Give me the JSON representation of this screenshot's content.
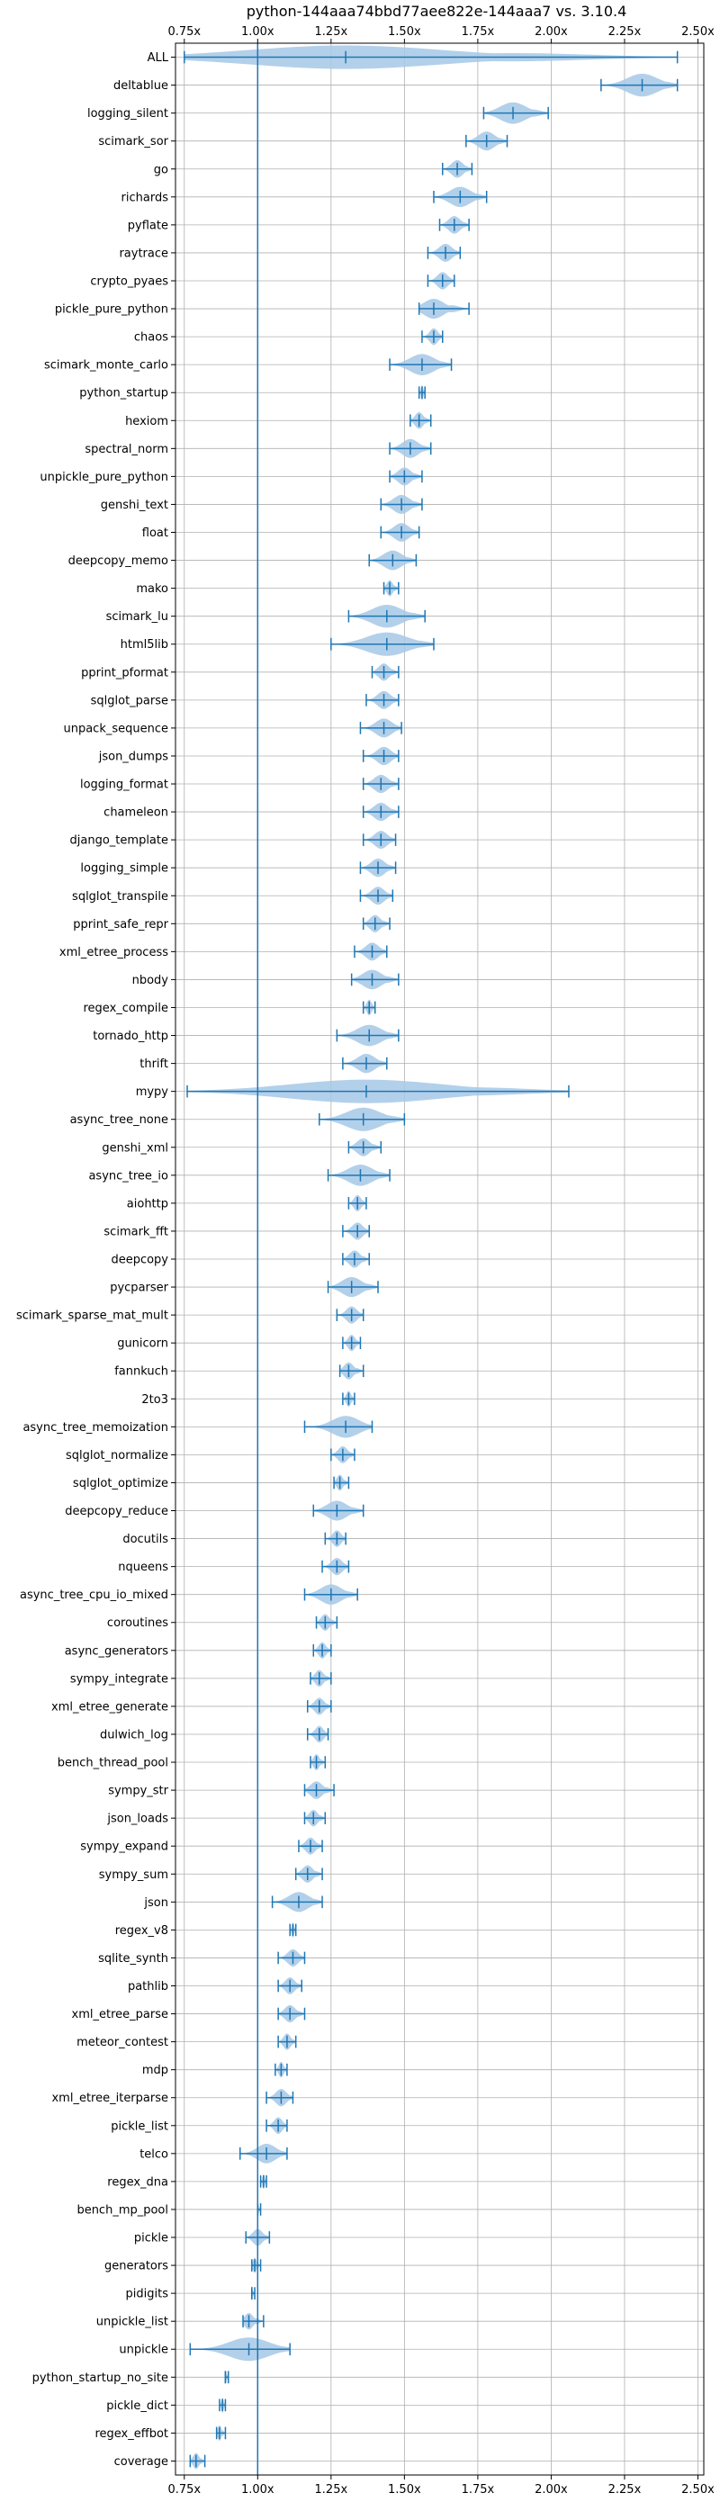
{
  "chart_data": {
    "type": "violin",
    "orientation": "horizontal",
    "title": "python-144aaa74bbd77aee822e-144aaa7 vs. 3.10.4",
    "xlim": [
      0.72,
      2.52
    ],
    "xticks": [
      0.75,
      1.0,
      1.25,
      1.5,
      1.75,
      2.0,
      2.25,
      2.5
    ],
    "xtick_labels": [
      "0.75x",
      "1.00x",
      "1.25x",
      "1.50x",
      "1.75x",
      "2.00x",
      "2.25x",
      "2.50x"
    ],
    "reference_line": 1.0,
    "grid": true,
    "color": "#1f77b4",
    "fill_color": "#a6c8e6",
    "categories": [
      {
        "name": "ALL",
        "min": 0.75,
        "max": 2.43,
        "median": 1.3
      },
      {
        "name": "deltablue",
        "min": 2.17,
        "max": 2.43,
        "median": 2.31
      },
      {
        "name": "logging_silent",
        "min": 1.77,
        "max": 1.99,
        "median": 1.87
      },
      {
        "name": "scimark_sor",
        "min": 1.71,
        "max": 1.85,
        "median": 1.78
      },
      {
        "name": "go",
        "min": 1.63,
        "max": 1.73,
        "median": 1.68
      },
      {
        "name": "richards",
        "min": 1.6,
        "max": 1.78,
        "median": 1.69
      },
      {
        "name": "pyflate",
        "min": 1.62,
        "max": 1.72,
        "median": 1.67
      },
      {
        "name": "raytrace",
        "min": 1.58,
        "max": 1.69,
        "median": 1.64
      },
      {
        "name": "crypto_pyaes",
        "min": 1.58,
        "max": 1.67,
        "median": 1.63
      },
      {
        "name": "pickle_pure_python",
        "min": 1.55,
        "max": 1.72,
        "median": 1.6
      },
      {
        "name": "chaos",
        "min": 1.56,
        "max": 1.63,
        "median": 1.6
      },
      {
        "name": "scimark_monte_carlo",
        "min": 1.45,
        "max": 1.66,
        "median": 1.56
      },
      {
        "name": "python_startup",
        "min": 1.55,
        "max": 1.57,
        "median": 1.56
      },
      {
        "name": "hexiom",
        "min": 1.52,
        "max": 1.59,
        "median": 1.55
      },
      {
        "name": "spectral_norm",
        "min": 1.45,
        "max": 1.59,
        "median": 1.52
      },
      {
        "name": "unpickle_pure_python",
        "min": 1.45,
        "max": 1.56,
        "median": 1.5
      },
      {
        "name": "genshi_text",
        "min": 1.42,
        "max": 1.56,
        "median": 1.49
      },
      {
        "name": "float",
        "min": 1.42,
        "max": 1.55,
        "median": 1.49
      },
      {
        "name": "deepcopy_memo",
        "min": 1.38,
        "max": 1.54,
        "median": 1.46
      },
      {
        "name": "mako",
        "min": 1.43,
        "max": 1.48,
        "median": 1.45
      },
      {
        "name": "scimark_lu",
        "min": 1.31,
        "max": 1.57,
        "median": 1.44
      },
      {
        "name": "html5lib",
        "min": 1.25,
        "max": 1.6,
        "median": 1.44
      },
      {
        "name": "pprint_pformat",
        "min": 1.39,
        "max": 1.48,
        "median": 1.43
      },
      {
        "name": "sqlglot_parse",
        "min": 1.37,
        "max": 1.48,
        "median": 1.43
      },
      {
        "name": "unpack_sequence",
        "min": 1.35,
        "max": 1.49,
        "median": 1.43
      },
      {
        "name": "json_dumps",
        "min": 1.36,
        "max": 1.48,
        "median": 1.43
      },
      {
        "name": "logging_format",
        "min": 1.36,
        "max": 1.48,
        "median": 1.42
      },
      {
        "name": "chameleon",
        "min": 1.36,
        "max": 1.48,
        "median": 1.42
      },
      {
        "name": "django_template",
        "min": 1.36,
        "max": 1.47,
        "median": 1.42
      },
      {
        "name": "logging_simple",
        "min": 1.35,
        "max": 1.47,
        "median": 1.41
      },
      {
        "name": "sqlglot_transpile",
        "min": 1.35,
        "max": 1.46,
        "median": 1.41
      },
      {
        "name": "pprint_safe_repr",
        "min": 1.36,
        "max": 1.45,
        "median": 1.4
      },
      {
        "name": "xml_etree_process",
        "min": 1.33,
        "max": 1.44,
        "median": 1.39
      },
      {
        "name": "nbody",
        "min": 1.32,
        "max": 1.48,
        "median": 1.39
      },
      {
        "name": "regex_compile",
        "min": 1.36,
        "max": 1.4,
        "median": 1.38
      },
      {
        "name": "tornado_http",
        "min": 1.27,
        "max": 1.48,
        "median": 1.38
      },
      {
        "name": "thrift",
        "min": 1.29,
        "max": 1.44,
        "median": 1.37
      },
      {
        "name": "mypy",
        "min": 0.76,
        "max": 2.06,
        "median": 1.37
      },
      {
        "name": "async_tree_none",
        "min": 1.21,
        "max": 1.5,
        "median": 1.36
      },
      {
        "name": "genshi_xml",
        "min": 1.31,
        "max": 1.42,
        "median": 1.36
      },
      {
        "name": "async_tree_io",
        "min": 1.24,
        "max": 1.45,
        "median": 1.35
      },
      {
        "name": "aiohttp",
        "min": 1.31,
        "max": 1.37,
        "median": 1.34
      },
      {
        "name": "scimark_fft",
        "min": 1.29,
        "max": 1.38,
        "median": 1.34
      },
      {
        "name": "deepcopy",
        "min": 1.29,
        "max": 1.38,
        "median": 1.33
      },
      {
        "name": "pycparser",
        "min": 1.24,
        "max": 1.41,
        "median": 1.32
      },
      {
        "name": "scimark_sparse_mat_mult",
        "min": 1.27,
        "max": 1.36,
        "median": 1.32
      },
      {
        "name": "gunicorn",
        "min": 1.29,
        "max": 1.35,
        "median": 1.32
      },
      {
        "name": "fannkuch",
        "min": 1.28,
        "max": 1.36,
        "median": 1.31
      },
      {
        "name": "2to3",
        "min": 1.29,
        "max": 1.33,
        "median": 1.31
      },
      {
        "name": "async_tree_memoization",
        "min": 1.16,
        "max": 1.39,
        "median": 1.3
      },
      {
        "name": "sqlglot_normalize",
        "min": 1.25,
        "max": 1.33,
        "median": 1.29
      },
      {
        "name": "sqlglot_optimize",
        "min": 1.26,
        "max": 1.31,
        "median": 1.28
      },
      {
        "name": "deepcopy_reduce",
        "min": 1.19,
        "max": 1.36,
        "median": 1.27
      },
      {
        "name": "docutils",
        "min": 1.23,
        "max": 1.3,
        "median": 1.27
      },
      {
        "name": "nqueens",
        "min": 1.22,
        "max": 1.31,
        "median": 1.27
      },
      {
        "name": "async_tree_cpu_io_mixed",
        "min": 1.16,
        "max": 1.34,
        "median": 1.25
      },
      {
        "name": "coroutines",
        "min": 1.2,
        "max": 1.27,
        "median": 1.23
      },
      {
        "name": "async_generators",
        "min": 1.19,
        "max": 1.25,
        "median": 1.22
      },
      {
        "name": "sympy_integrate",
        "min": 1.18,
        "max": 1.25,
        "median": 1.21
      },
      {
        "name": "xml_etree_generate",
        "min": 1.17,
        "max": 1.25,
        "median": 1.21
      },
      {
        "name": "dulwich_log",
        "min": 1.17,
        "max": 1.24,
        "median": 1.21
      },
      {
        "name": "bench_thread_pool",
        "min": 1.18,
        "max": 1.23,
        "median": 1.2
      },
      {
        "name": "sympy_str",
        "min": 1.16,
        "max": 1.26,
        "median": 1.2
      },
      {
        "name": "json_loads",
        "min": 1.16,
        "max": 1.23,
        "median": 1.19
      },
      {
        "name": "sympy_expand",
        "min": 1.14,
        "max": 1.22,
        "median": 1.18
      },
      {
        "name": "sympy_sum",
        "min": 1.13,
        "max": 1.22,
        "median": 1.17
      },
      {
        "name": "json",
        "min": 1.05,
        "max": 1.22,
        "median": 1.14
      },
      {
        "name": "regex_v8",
        "min": 1.11,
        "max": 1.13,
        "median": 1.12
      },
      {
        "name": "sqlite_synth",
        "min": 1.07,
        "max": 1.16,
        "median": 1.12
      },
      {
        "name": "pathlib",
        "min": 1.07,
        "max": 1.15,
        "median": 1.11
      },
      {
        "name": "xml_etree_parse",
        "min": 1.07,
        "max": 1.16,
        "median": 1.11
      },
      {
        "name": "meteor_contest",
        "min": 1.07,
        "max": 1.13,
        "median": 1.1
      },
      {
        "name": "mdp",
        "min": 1.06,
        "max": 1.1,
        "median": 1.08
      },
      {
        "name": "xml_etree_iterparse",
        "min": 1.03,
        "max": 1.12,
        "median": 1.08
      },
      {
        "name": "pickle_list",
        "min": 1.03,
        "max": 1.1,
        "median": 1.07
      },
      {
        "name": "telco",
        "min": 0.94,
        "max": 1.1,
        "median": 1.03
      },
      {
        "name": "regex_dna",
        "min": 1.01,
        "max": 1.03,
        "median": 1.02
      },
      {
        "name": "bench_mp_pool",
        "min": 1.0,
        "max": 1.01,
        "median": 1.0
      },
      {
        "name": "pickle",
        "min": 0.96,
        "max": 1.04,
        "median": 1.0
      },
      {
        "name": "generators",
        "min": 0.98,
        "max": 1.01,
        "median": 0.99
      },
      {
        "name": "pidigits",
        "min": 0.98,
        "max": 0.99,
        "median": 0.98
      },
      {
        "name": "unpickle_list",
        "min": 0.95,
        "max": 1.02,
        "median": 0.97
      },
      {
        "name": "unpickle",
        "min": 0.77,
        "max": 1.11,
        "median": 0.97
      },
      {
        "name": "python_startup_no_site",
        "min": 0.89,
        "max": 0.9,
        "median": 0.89
      },
      {
        "name": "pickle_dict",
        "min": 0.87,
        "max": 0.89,
        "median": 0.88
      },
      {
        "name": "regex_effbot",
        "min": 0.86,
        "max": 0.89,
        "median": 0.87
      },
      {
        "name": "coverage",
        "min": 0.77,
        "max": 0.82,
        "median": 0.79
      }
    ]
  }
}
